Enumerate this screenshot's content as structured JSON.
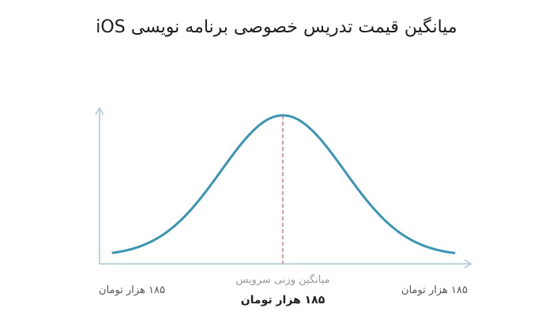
{
  "chart_data": {
    "type": "line",
    "title": "میانگین قیمت تدریس خصوصی برنامه نویسی iOS",
    "labels": {
      "left": "۱۸۵ هزار تومان",
      "right": "۱۸۵ هزار تومان",
      "center_top": "میانگین وزنی سرویس",
      "center_bottom": "۱۸۵ هزار تومان"
    },
    "grid": false,
    "legend": "none",
    "colors": {
      "curve": "#3a95b3",
      "axis": "#a9c7d4",
      "mean_line": "#e0527a"
    }
  }
}
